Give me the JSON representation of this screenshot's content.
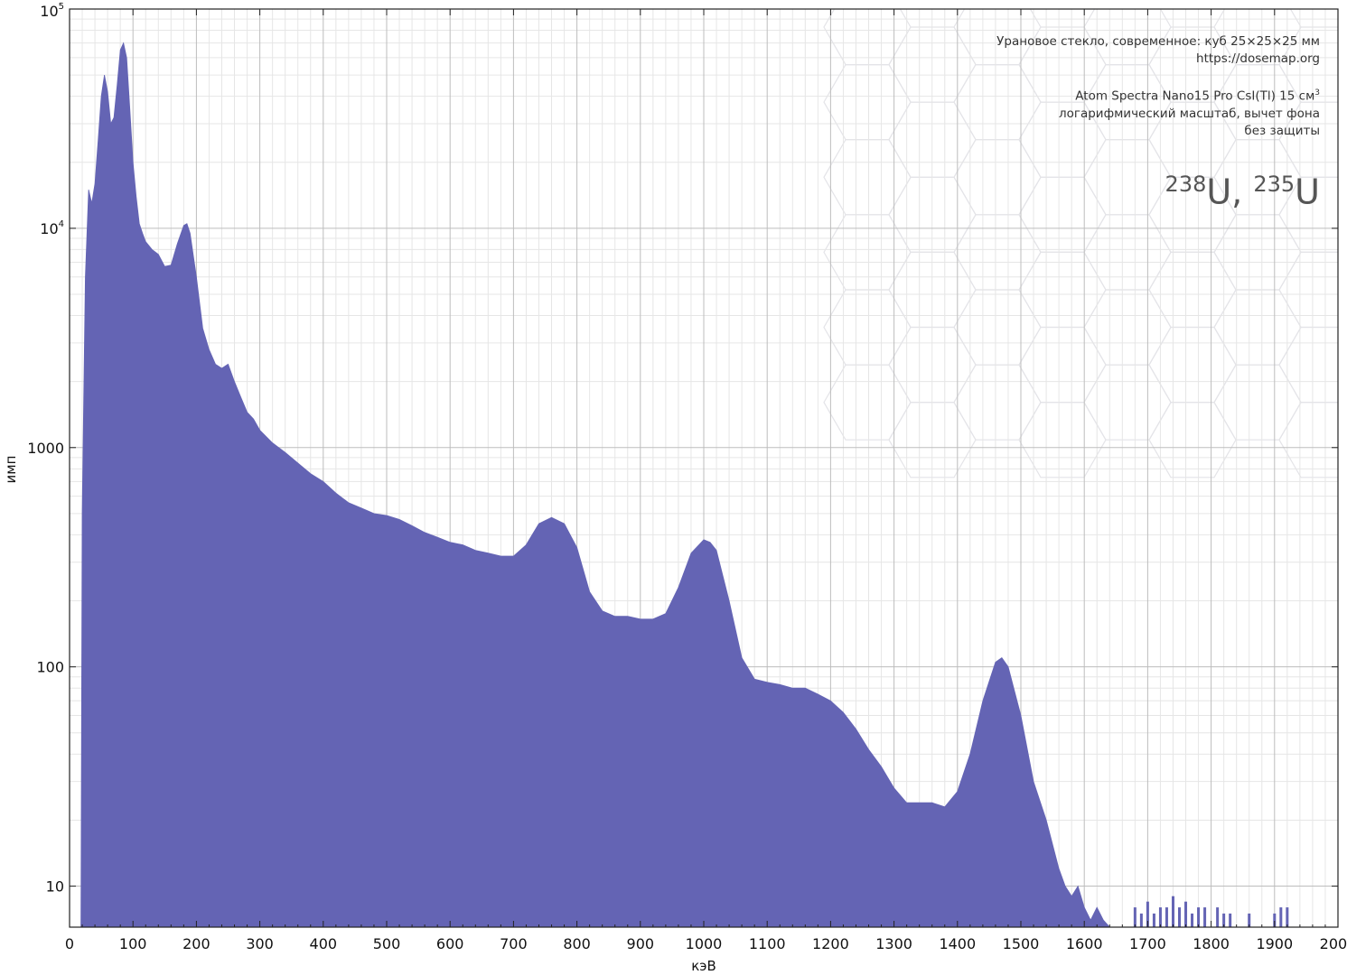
{
  "chart_data": {
    "type": "area",
    "xlabel": "кэВ",
    "ylabel": "имп",
    "xlim": [
      0,
      2000
    ],
    "ylim": [
      6.5,
      100000
    ],
    "y_scale": "log",
    "grid": true,
    "x_ticks": [
      "0",
      "100",
      "200",
      "300",
      "400",
      "500",
      "600",
      "700",
      "800",
      "900",
      "1000",
      "1100",
      "1200",
      "1300",
      "1400",
      "1500",
      "1600",
      "1700",
      "1800",
      "1900",
      "2000"
    ],
    "y_ticks": [
      {
        "value": 10,
        "label": "10"
      },
      {
        "value": 100,
        "label": "100"
      },
      {
        "value": 1000,
        "label": "1000"
      },
      {
        "value": 10000,
        "base": "10",
        "exp": "4"
      },
      {
        "value": 100000,
        "base": "10",
        "exp": "5"
      }
    ],
    "fill_color": "#6464b4",
    "series": [
      {
        "x": [
          18,
          20,
          25,
          30,
          35,
          40,
          45,
          50,
          55,
          60,
          65,
          70,
          75,
          80,
          85,
          90,
          95,
          100,
          105,
          110,
          115,
          120,
          130,
          140,
          150,
          160,
          170,
          180,
          185,
          190,
          200,
          210,
          220,
          230,
          240,
          250,
          260,
          270,
          280,
          290,
          300,
          320,
          340,
          360,
          380,
          400,
          420,
          440,
          460,
          480,
          500,
          520,
          540,
          560,
          580,
          600,
          620,
          640,
          660,
          680,
          700,
          720,
          740,
          760,
          780,
          800,
          820,
          840,
          860,
          880,
          900,
          920,
          940,
          960,
          980,
          1000,
          1010,
          1020,
          1040,
          1060,
          1080,
          1100,
          1120,
          1140,
          1160,
          1180,
          1200,
          1220,
          1240,
          1260,
          1280,
          1300,
          1320,
          1340,
          1360,
          1380,
          1400,
          1420,
          1440,
          1460,
          1470,
          1480,
          1500,
          1520,
          1540,
          1560,
          1570,
          1580,
          1590,
          1600,
          1610,
          1620,
          1630,
          1640
        ],
        "y": [
          6.5,
          500,
          6000,
          15000,
          13000,
          16000,
          25000,
          40000,
          50000,
          42000,
          30000,
          32000,
          45000,
          65000,
          70000,
          60000,
          35000,
          20000,
          14000,
          10500,
          9500,
          8700,
          8000,
          7600,
          6700,
          6800,
          8500,
          10300,
          10500,
          9500,
          6000,
          3500,
          2800,
          2400,
          2300,
          2400,
          2000,
          1700,
          1450,
          1350,
          1200,
          1050,
          950,
          850,
          760,
          700,
          620,
          560,
          530,
          500,
          490,
          470,
          440,
          410,
          390,
          370,
          360,
          340,
          330,
          320,
          320,
          360,
          450,
          480,
          450,
          350,
          220,
          180,
          170,
          170,
          165,
          165,
          175,
          230,
          330,
          380,
          370,
          340,
          200,
          110,
          88,
          85,
          83,
          80,
          80,
          75,
          70,
          62,
          52,
          42,
          35,
          28,
          24,
          24,
          24,
          23,
          27,
          40,
          70,
          105,
          110,
          100,
          60,
          30,
          20,
          12,
          10,
          9,
          10,
          8,
          7,
          8,
          7,
          6.5
        ]
      }
    ],
    "tail": {
      "x": [
        1680,
        1690,
        1700,
        1710,
        1720,
        1730,
        1740,
        1750,
        1760,
        1770,
        1780,
        1790,
        1810,
        1820,
        1830,
        1860,
        1900,
        1910,
        1920
      ],
      "y": [
        8,
        7.5,
        8.5,
        7.5,
        8,
        8,
        9,
        8,
        8.5,
        7.5,
        8,
        8,
        8,
        7.5,
        7.5,
        7.5,
        7.5,
        8,
        8
      ]
    }
  },
  "annotations": {
    "line1": "Урановое стекло, современное: куб 25×25×25 мм",
    "line2": "https://dosemap.org",
    "line3_main": "Atom Spectra Nano15 Pro CsI(Tl) 15 см",
    "line3_sup": "3",
    "line4": "логарифмический масштаб, вычет фона",
    "line5": "без защиты",
    "iso1_mass": "238",
    "iso1_sym": "U,",
    "iso2_mass": "235",
    "iso2_sym": "U"
  }
}
